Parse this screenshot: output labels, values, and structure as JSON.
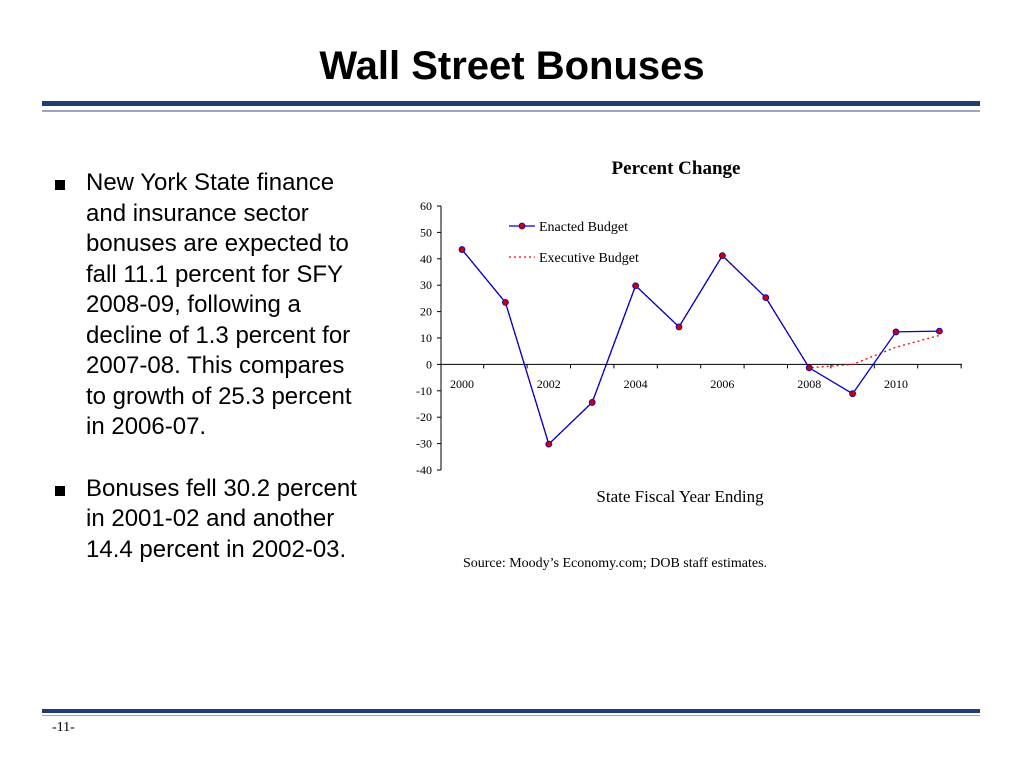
{
  "slide": {
    "title": "Wall Street Bonuses",
    "bullets": [
      "New York State finance and insurance sector bonuses are expected to fall 11.1 percent for SFY 2008-09, following a decline of 1.3 percent for 2007-08. This compares to growth of 25.3 percent in 2006-07.",
      "Bonuses fell 30.2 percent in 2001-02 and another 14.4 percent in 2002-03."
    ],
    "slide_number": "-11-"
  },
  "chart_data": {
    "type": "line",
    "title": "Percent Change",
    "xlabel": "State Fiscal Year Ending",
    "ylabel": "",
    "source": "Source: Moody’s Economy.com; DOB staff estimates.",
    "ylim": [
      -40,
      60
    ],
    "yticks": [
      60,
      50,
      40,
      30,
      20,
      10,
      0,
      -10,
      -20,
      -30,
      -40
    ],
    "xlim": [
      2000,
      2011
    ],
    "xtick_labels": [
      "2000",
      "2002",
      "2004",
      "2006",
      "2008",
      "2010"
    ],
    "xtick_values": [
      2000,
      2002,
      2004,
      2006,
      2008,
      2010
    ],
    "grid": false,
    "legend_position": "top-left",
    "series": [
      {
        "name": "Enacted Budget",
        "color": "#0000cc",
        "marker_color": "#cc0000",
        "style": "solid",
        "x": [
          2000,
          2001,
          2002,
          2003,
          2004,
          2005,
          2006,
          2007,
          2008,
          2009,
          2010,
          2011
        ],
        "values": [
          43.5,
          23.5,
          -30.2,
          -14.4,
          29.8,
          14.2,
          41.2,
          25.3,
          -1.3,
          -11.1,
          12.3,
          12.6
        ]
      },
      {
        "name": "Executive Budget",
        "color": "#ff0000",
        "style": "dotted",
        "x": [
          2000,
          2001,
          2002,
          2003,
          2004,
          2005,
          2006,
          2007,
          2008,
          2009,
          2010,
          2011
        ],
        "values": [
          43.5,
          23.5,
          -30.2,
          -14.4,
          29.8,
          14.2,
          41.2,
          25.3,
          -1.3,
          0.0,
          6.5,
          11.0
        ]
      }
    ]
  }
}
